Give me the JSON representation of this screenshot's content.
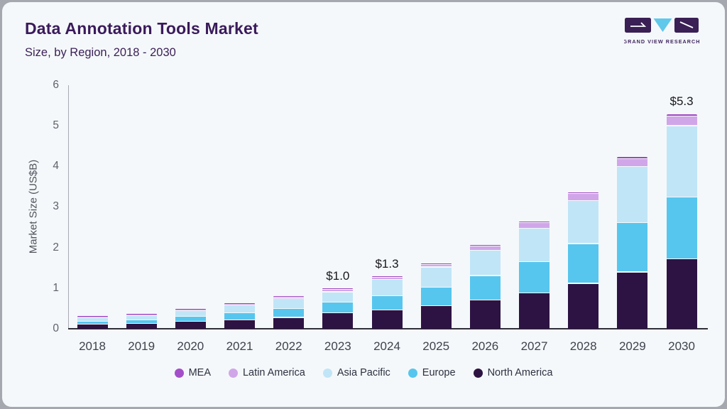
{
  "header": {
    "title": "Data Annotation Tools Market",
    "subtitle": "Size, by Region, 2018 - 2030"
  },
  "logo": {
    "wordmark": "GRAND VIEW RESEARCH",
    "mark_colors": {
      "square": "#3a2055",
      "triangle": "#5fc8eb",
      "slash": "#ffffff"
    }
  },
  "colors": {
    "card_bg": "#f5f8fa",
    "frame": "#a5a8ae",
    "title_text": "#3a1a5b",
    "axis_line": "#a8abb2",
    "baseline": "#2e2f38",
    "tick_text": "#5e626b",
    "year_text": "#3e434d",
    "value_label_text": "#15171c"
  },
  "chart_data": {
    "type": "bar",
    "stacked": true,
    "title": "Data Annotation Tools Market",
    "subtitle": "Size, by Region, 2018 - 2030",
    "xlabel": "",
    "ylabel": "Market Size (US$B)",
    "ylim": [
      0,
      6
    ],
    "yticks": [
      0,
      1,
      2,
      3,
      4,
      5,
      6
    ],
    "grid": false,
    "legend_position": "bottom",
    "categories": [
      "2018",
      "2019",
      "2020",
      "2021",
      "2022",
      "2023",
      "2024",
      "2025",
      "2026",
      "2027",
      "2028",
      "2029",
      "2030"
    ],
    "series": [
      {
        "name": "North America",
        "color": "#2d1343",
        "values": [
          0.13,
          0.14,
          0.19,
          0.23,
          0.29,
          0.41,
          0.47,
          0.58,
          0.72,
          0.9,
          1.13,
          1.41,
          1.73
        ]
      },
      {
        "name": "Europe",
        "color": "#56c6ee",
        "values": [
          0.07,
          0.09,
          0.12,
          0.17,
          0.22,
          0.25,
          0.36,
          0.45,
          0.6,
          0.76,
          0.98,
          1.21,
          1.53
        ]
      },
      {
        "name": "Asia Pacific",
        "color": "#c0e5f7",
        "values": [
          0.08,
          0.11,
          0.14,
          0.19,
          0.24,
          0.26,
          0.4,
          0.5,
          0.62,
          0.83,
          1.06,
          1.38,
          1.75
        ]
      },
      {
        "name": "Latin America",
        "color": "#d1a6e9",
        "values": [
          0.015,
          0.02,
          0.02,
          0.03,
          0.04,
          0.06,
          0.05,
          0.07,
          0.11,
          0.13,
          0.17,
          0.2,
          0.24
        ]
      },
      {
        "name": "MEA",
        "color": "#9d44c0",
        "values": [
          0.005,
          0.01,
          0.01,
          0.01,
          0.02,
          0.02,
          0.02,
          0.03,
          0.03,
          0.03,
          0.04,
          0.05,
          0.05
        ]
      }
    ],
    "totals": [
      0.3,
      0.37,
      0.48,
      0.63,
      0.81,
      1.0,
      1.3,
      1.63,
      2.08,
      2.65,
      3.38,
      4.25,
      5.3
    ],
    "annotations": [
      {
        "category": "2023",
        "label": "$1.0"
      },
      {
        "category": "2024",
        "label": "$1.3"
      },
      {
        "category": "2030",
        "label": "$5.3"
      }
    ],
    "legend": [
      "MEA",
      "Latin America",
      "Asia Pacific",
      "Europe",
      "North America"
    ],
    "legend_colors": {
      "MEA": "#a44fca",
      "Latin America": "#d1a6e9",
      "Asia Pacific": "#c0e5f7",
      "Europe": "#56c6ee",
      "North America": "#2d1343"
    }
  }
}
